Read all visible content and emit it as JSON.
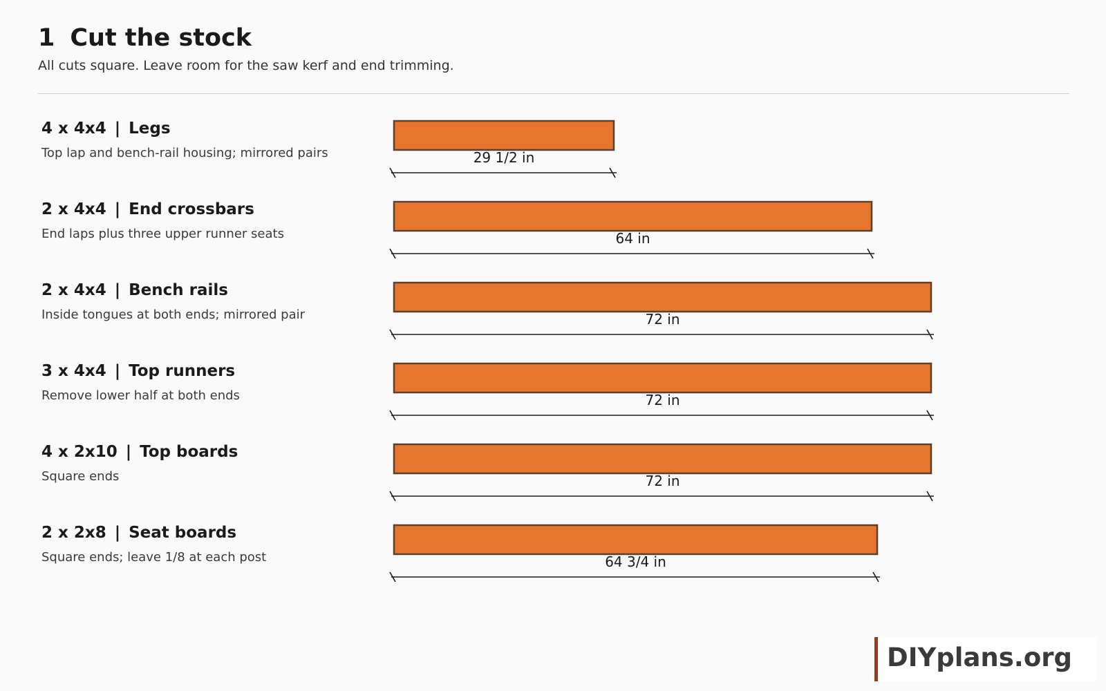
{
  "header": {
    "step_number": "1",
    "title": "Cut the stock",
    "subtitle": "All cuts square. Leave room for the saw kerf and end trimming."
  },
  "scale": {
    "max_length_in": 72
  },
  "colors": {
    "board_fill": "#e6762e",
    "board_stroke": "#5a4030",
    "brand_bar": "#9b3a1e"
  },
  "cuts": [
    {
      "quantity": "4 x 4x4",
      "part": "Legs",
      "note": "Top lap and bench-rail housing; mirrored pairs",
      "length_in": 29.5,
      "length_label": "29 1/2 in"
    },
    {
      "quantity": "2 x 4x4",
      "part": "End crossbars",
      "note": "End laps plus three upper runner seats",
      "length_in": 64,
      "length_label": "64 in"
    },
    {
      "quantity": "2 x 4x4",
      "part": "Bench rails",
      "note": "Inside tongues at both ends; mirrored pair",
      "length_in": 72,
      "length_label": "72 in"
    },
    {
      "quantity": "3 x 4x4",
      "part": "Top runners",
      "note": "Remove lower half at both ends",
      "length_in": 72,
      "length_label": "72 in"
    },
    {
      "quantity": "4 x 2x10",
      "part": "Top boards",
      "note": "Square ends",
      "length_in": 72,
      "length_label": "72 in"
    },
    {
      "quantity": "2 x 2x8",
      "part": "Seat boards",
      "note": "Square ends; leave 1/8 at each post",
      "length_in": 64.75,
      "length_label": "64 3/4 in"
    }
  ],
  "brand": {
    "text": "DIYplans.org"
  }
}
